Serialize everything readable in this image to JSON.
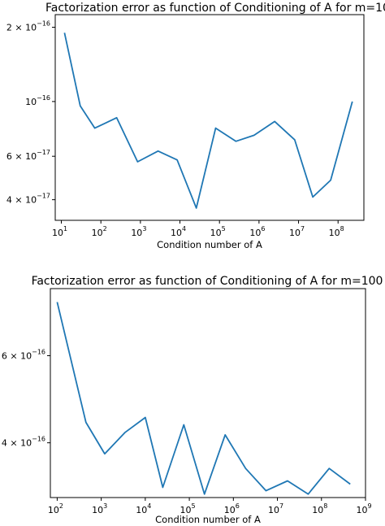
{
  "chart_data": [
    {
      "type": "line",
      "title": "Factorization error as function of Conditioning of A for m=10",
      "xlabel": "Condition number of A",
      "ylabel": "",
      "xscale": "log",
      "yscale": "log",
      "xlim": [
        7,
        450000000.0
      ],
      "ylim": [
        3.3e-17,
        2.25e-16
      ],
      "x_ticks": [
        {
          "base": "10",
          "exp": "1",
          "value": 10.0
        },
        {
          "base": "10",
          "exp": "2",
          "value": 100.0
        },
        {
          "base": "10",
          "exp": "3",
          "value": 1000.0
        },
        {
          "base": "10",
          "exp": "4",
          "value": 10000.0
        },
        {
          "base": "10",
          "exp": "5",
          "value": 100000.0
        },
        {
          "base": "10",
          "exp": "6",
          "value": 1000000.0
        },
        {
          "base": "10",
          "exp": "7",
          "value": 10000000.0
        },
        {
          "base": "10",
          "exp": "8",
          "value": 100000000.0
        }
      ],
      "y_ticks": [
        {
          "mant": "2 × 10",
          "exp": "−16",
          "value": 2e-16
        },
        {
          "mant": "10",
          "exp": "−16",
          "value": 1e-16
        },
        {
          "mant": "6 × 10",
          "exp": "−17",
          "value": 6e-17
        },
        {
          "mant": "4 × 10",
          "exp": "−17",
          "value": 4e-17
        }
      ],
      "grid": false,
      "color": "#1f77b4",
      "x": [
        12,
        30,
        70,
        250,
        850,
        2800,
        8500,
        26000,
        80000,
        260000,
        750000,
        2500000,
        8000000,
        23000000,
        65000000,
        230000000
      ],
      "y": [
        1.9e-16,
        9.6e-17,
        7.8e-17,
        8.6e-17,
        5.7e-17,
        6.3e-17,
        5.8e-17,
        3.7e-17,
        7.8e-17,
        6.9e-17,
        7.3e-17,
        8.3e-17,
        7e-17,
        4.1e-17,
        4.8e-17,
        1e-16
      ]
    },
    {
      "type": "line",
      "title": "Factorization error as function of Conditioning of A for m=100",
      "xlabel": "Condition number of A",
      "ylabel": "",
      "xscale": "log",
      "yscale": "log",
      "xlim": [
        70,
        1000000000.0
      ],
      "ylim": [
        3.1e-16,
        8.2e-16
      ],
      "x_ticks": [
        {
          "base": "10",
          "exp": "2",
          "value": 100.0
        },
        {
          "base": "10",
          "exp": "3",
          "value": 1000.0
        },
        {
          "base": "10",
          "exp": "4",
          "value": 10000.0
        },
        {
          "base": "10",
          "exp": "5",
          "value": 100000.0
        },
        {
          "base": "10",
          "exp": "6",
          "value": 1000000.0
        },
        {
          "base": "10",
          "exp": "7",
          "value": 10000000.0
        },
        {
          "base": "10",
          "exp": "8",
          "value": 100000000.0
        },
        {
          "base": "10",
          "exp": "9",
          "value": 1000000000.0
        }
      ],
      "y_ticks": [
        {
          "mant": "6 × 10",
          "exp": "−16",
          "value": 6e-16
        },
        {
          "mant": "4 × 10",
          "exp": "−16",
          "value": 4e-16
        }
      ],
      "grid": false,
      "color": "#1f77b4",
      "x": [
        100,
        450,
        1200,
        3500,
        10000,
        25000,
        75000,
        220000,
        650000,
        1900000,
        5500000,
        17000000,
        50000000,
        150000000,
        450000000
      ],
      "y": [
        7.7e-16,
        4.4e-16,
        3.8e-16,
        4.2e-16,
        4.5e-16,
        3.25e-16,
        4.35e-16,
        3.15e-16,
        4.15e-16,
        3.55e-16,
        3.2e-16,
        3.35e-16,
        3.15e-16,
        3.55e-16,
        3.3e-16
      ]
    }
  ]
}
